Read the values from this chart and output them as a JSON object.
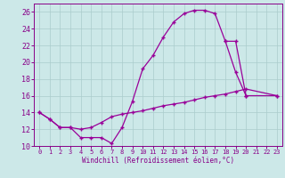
{
  "xlabel": "Windchill (Refroidissement éolien,°C)",
  "bg_color": "#cce8e8",
  "line_color": "#990099",
  "xlim": [
    -0.5,
    23.5
  ],
  "ylim": [
    10,
    27
  ],
  "yticks": [
    10,
    12,
    14,
    16,
    18,
    20,
    22,
    24,
    26
  ],
  "xticks": [
    0,
    1,
    2,
    3,
    4,
    5,
    6,
    7,
    8,
    9,
    10,
    11,
    12,
    13,
    14,
    15,
    16,
    17,
    18,
    19,
    20,
    21,
    22,
    23
  ],
  "grid_color": "#aacccc",
  "font_color": "#880088",
  "curve1_x": [
    0,
    1,
    2,
    3,
    4,
    5,
    6,
    7,
    8,
    9,
    10,
    11,
    12,
    13,
    14,
    15,
    16,
    17,
    18,
    19,
    20
  ],
  "curve1_y": [
    14.0,
    13.2,
    12.2,
    12.2,
    11.0,
    11.0,
    11.0,
    10.3,
    12.2,
    15.3,
    19.2,
    20.8,
    23.0,
    24.8,
    25.8,
    26.2,
    26.2,
    25.8,
    22.5,
    18.8,
    16.0
  ],
  "curve2_x": [
    0,
    1,
    2,
    3,
    4,
    5,
    6,
    7,
    8,
    9,
    10,
    11,
    12,
    13,
    14,
    15,
    16,
    17,
    18,
    19,
    20,
    23
  ],
  "curve2_y": [
    14.0,
    13.2,
    12.2,
    12.2,
    12.0,
    12.2,
    12.8,
    13.5,
    13.8,
    14.0,
    14.2,
    14.5,
    14.8,
    15.0,
    15.2,
    15.5,
    15.8,
    16.0,
    16.2,
    16.5,
    16.8,
    16.0
  ],
  "curve3_x": [
    18,
    19,
    20,
    23
  ],
  "curve3_y": [
    22.5,
    22.5,
    16.0,
    16.0
  ]
}
